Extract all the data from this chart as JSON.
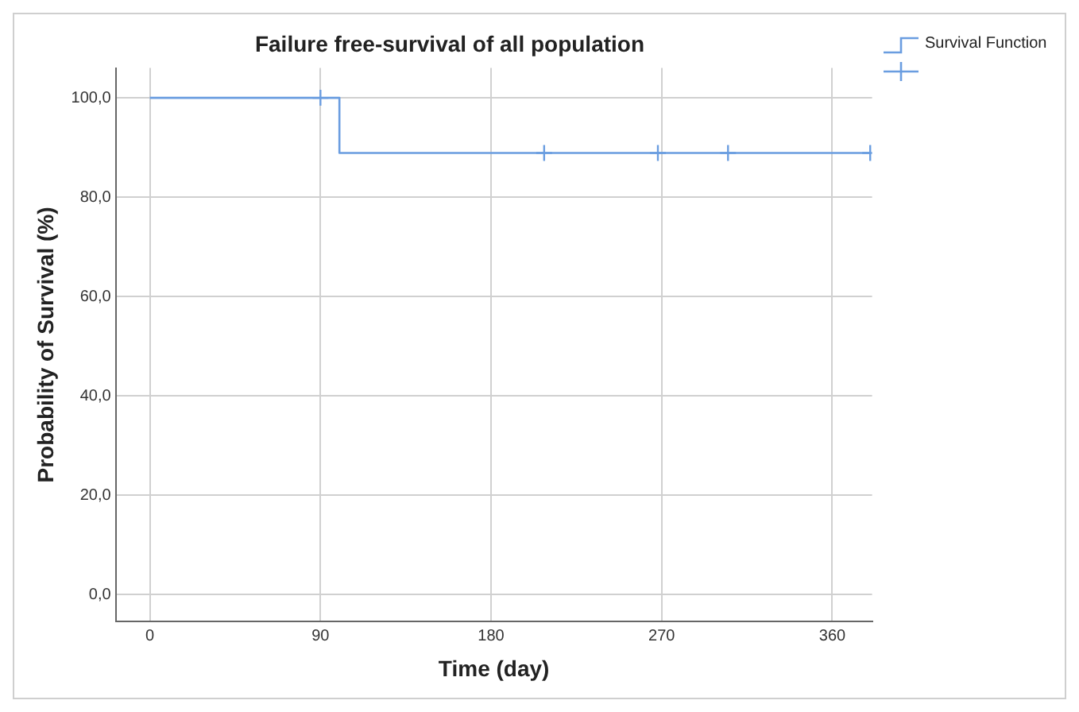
{
  "chart_data": {
    "type": "step",
    "title": "Failure free-survival of all population",
    "xlabel": "Time (day)",
    "ylabel": "Probability of Survival (%)",
    "series": [
      {
        "name": "Survival Function",
        "color": "#6a9de0",
        "x": [
          0,
          100,
          380
        ],
        "values": [
          100,
          88.9,
          88.9
        ]
      },
      {
        "type": "scatter",
        "marker": "cross",
        "color": "#6a9de0",
        "x": [
          90,
          208,
          268,
          305,
          380
        ],
        "values": [
          100,
          88.9,
          88.9,
          88.9,
          88.9
        ]
      }
    ],
    "xlim": [
      -18,
      381
    ],
    "xticks": [
      0,
      90,
      180,
      270,
      360
    ],
    "ylim": [
      -5.5,
      106
    ],
    "yticks": [
      {
        "value": 0,
        "label": "0,0"
      },
      {
        "value": 20,
        "label": "20,0"
      },
      {
        "value": 40,
        "label": "40,0"
      },
      {
        "value": 60,
        "label": "60,0"
      },
      {
        "value": 80,
        "label": "80,0"
      },
      {
        "value": 100,
        "label": "100,0"
      }
    ],
    "grid": true,
    "legend": "top right"
  }
}
